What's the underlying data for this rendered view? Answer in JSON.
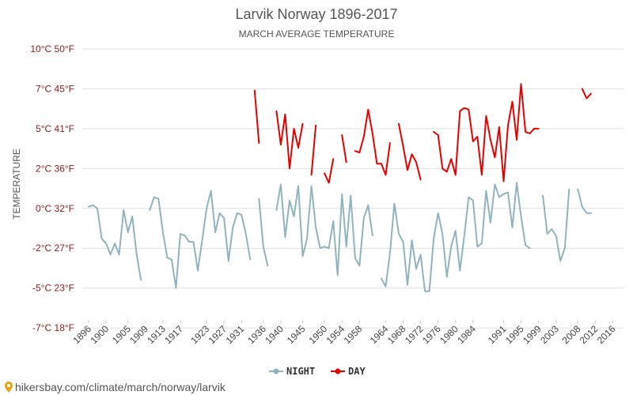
{
  "chart_data": {
    "type": "line",
    "title": "Larvik Norway 1896-2017",
    "subtitle": "MARCH AVERAGE TEMPERATURE",
    "ylabel": "TEMPERATURE",
    "xlabel": "",
    "ylim": [
      -7,
      10
    ],
    "y_ticks": [
      {
        "value": 10,
        "label": "10°C 50°F"
      },
      {
        "value": 7.5,
        "label": "7°C 45°F"
      },
      {
        "value": 5,
        "label": "5°C 41°F"
      },
      {
        "value": 2.5,
        "label": "2°C 36°F"
      },
      {
        "value": 0,
        "label": "0°C 32°F"
      },
      {
        "value": -2.5,
        "label": "-2°C 27°F"
      },
      {
        "value": -5,
        "label": "-5°C 23°F"
      },
      {
        "value": -7.5,
        "label": "-7°C 18°F"
      }
    ],
    "xlim": [
      1896,
      2017
    ],
    "x_ticks": [
      1896,
      1900,
      1905,
      1909,
      1913,
      1917,
      1923,
      1927,
      1931,
      1936,
      1940,
      1945,
      1950,
      1954,
      1958,
      1964,
      1968,
      1972,
      1976,
      1980,
      1984,
      1991,
      1995,
      1999,
      2003,
      2008,
      2012,
      2016
    ],
    "legend_position": "bottom-center",
    "grid": true,
    "series": [
      {
        "name": "NIGHT",
        "color": "#8fb3bf",
        "points": [
          [
            1896,
            0.1
          ],
          [
            1897,
            0.2
          ],
          [
            1898,
            0
          ],
          [
            1899,
            -1.9
          ],
          [
            1900,
            -2.2
          ],
          [
            1901,
            -2.9
          ],
          [
            1902,
            -2.2
          ],
          [
            1903,
            -2.9
          ],
          [
            1904,
            -0.1
          ],
          [
            1905,
            -1.5
          ],
          [
            1906,
            -0.5
          ],
          [
            1907,
            -2.9
          ],
          [
            1908,
            -4.5
          ],
          null,
          [
            1910,
            -0.1
          ],
          [
            1911,
            0.7
          ],
          [
            1912,
            0.6
          ],
          [
            1913,
            -1.5
          ],
          [
            1914,
            -3.1
          ],
          [
            1915,
            -3.2
          ],
          [
            1916,
            -5
          ],
          [
            1917,
            -1.6
          ],
          [
            1918,
            -1.7
          ],
          [
            1919,
            -2.1
          ],
          [
            1920,
            -2.1
          ],
          [
            1921,
            -3.9
          ],
          [
            1922,
            -2
          ],
          [
            1923,
            0
          ],
          [
            1924,
            1.1
          ],
          [
            1925,
            -1.5
          ],
          [
            1926,
            -0.3
          ],
          [
            1927,
            -0.6
          ],
          [
            1928,
            -3.3
          ],
          [
            1929,
            -1.2
          ],
          [
            1930,
            -0.3
          ],
          [
            1931,
            -0.4
          ],
          [
            1932,
            -1.6
          ],
          [
            1933,
            -3.2
          ],
          null,
          [
            1935,
            0.6
          ],
          [
            1936,
            -2.4
          ],
          [
            1937,
            -3.6
          ],
          null,
          [
            1939,
            -0.1
          ],
          [
            1940,
            1.5
          ],
          [
            1941,
            -1.8
          ],
          [
            1942,
            0.5
          ],
          [
            1943,
            -0.5
          ],
          [
            1944,
            1.4
          ],
          [
            1945,
            -3
          ],
          [
            1946,
            -1.9
          ],
          [
            1947,
            1.4
          ],
          [
            1948,
            -1.2
          ],
          [
            1949,
            -2.5
          ],
          [
            1950,
            -2.4
          ],
          [
            1951,
            -2.5
          ],
          [
            1952,
            -0.8
          ],
          [
            1953,
            -4.2
          ],
          [
            1954,
            0.9
          ],
          [
            1955,
            -2.4
          ],
          [
            1956,
            0.8
          ],
          [
            1957,
            -3.1
          ],
          [
            1958,
            -3.6
          ],
          [
            1959,
            -0.6
          ],
          [
            1960,
            0.2
          ],
          [
            1961,
            -1.7
          ],
          null,
          [
            1963,
            -4.4
          ],
          [
            1964,
            -4.9
          ],
          [
            1965,
            -2.8
          ],
          [
            1966,
            0.3
          ],
          [
            1967,
            -1.6
          ],
          [
            1968,
            -2.1
          ],
          [
            1969,
            -4.8
          ],
          [
            1970,
            -2
          ],
          [
            1971,
            -3.8
          ],
          [
            1972,
            -2.9
          ],
          [
            1973,
            -5.2
          ],
          [
            1974,
            -5.2
          ],
          [
            1975,
            -1.9
          ],
          [
            1976,
            -0.3
          ],
          [
            1977,
            -1.6
          ],
          [
            1978,
            -4.3
          ],
          [
            1979,
            -2.4
          ],
          [
            1980,
            -1.4
          ],
          [
            1981,
            -3.9
          ],
          [
            1982,
            -1.7
          ],
          [
            1983,
            0.7
          ],
          [
            1984,
            0.5
          ],
          [
            1985,
            -2.4
          ],
          [
            1986,
            -2.2
          ],
          [
            1987,
            1.1
          ],
          [
            1988,
            -0.9
          ],
          [
            1989,
            1.5
          ],
          [
            1990,
            0.7
          ],
          [
            1991,
            0.9
          ],
          [
            1992,
            1
          ],
          [
            1993,
            -1.2
          ],
          [
            1994,
            1.6
          ],
          [
            1995,
            -0.5
          ],
          [
            1996,
            -2.3
          ],
          [
            1997,
            -2.5
          ],
          null,
          [
            2000,
            0.8
          ],
          [
            2001,
            -1.6
          ],
          [
            2002,
            -1.3
          ],
          [
            2003,
            -1.7
          ],
          [
            2004,
            -3.3
          ],
          [
            2005,
            -2.5
          ],
          [
            2006,
            1.2
          ],
          null,
          [
            2008,
            1.2
          ],
          [
            2009,
            0.1
          ],
          [
            2010,
            -0.3
          ],
          [
            2011,
            -0.3
          ]
        ]
      },
      {
        "name": "DAY",
        "color": "#e60000",
        "points": [
          [
            1934,
            7.4
          ],
          [
            1935,
            4.1
          ],
          null,
          [
            1939,
            6.1
          ],
          [
            1940,
            4
          ],
          [
            1941,
            5.9
          ],
          [
            1942,
            2.5
          ],
          [
            1943,
            5
          ],
          [
            1944,
            3.8
          ],
          [
            1945,
            5.3
          ],
          null,
          [
            1947,
            2.1
          ],
          [
            1948,
            5.2
          ],
          null,
          [
            1950,
            2.2
          ],
          [
            1951,
            1.6
          ],
          [
            1952,
            3.1
          ],
          null,
          [
            1954,
            4.6
          ],
          [
            1955,
            2.9
          ],
          null,
          [
            1957,
            3.6
          ],
          [
            1958,
            3.5
          ],
          [
            1959,
            4.5
          ],
          [
            1960,
            6.2
          ],
          [
            1961,
            4.7
          ],
          [
            1962,
            2.8
          ],
          [
            1963,
            2.8
          ],
          [
            1964,
            2.1
          ],
          [
            1965,
            4.1
          ],
          null,
          [
            1967,
            5.3
          ],
          [
            1968,
            3.9
          ],
          [
            1969,
            2.4
          ],
          [
            1970,
            3.4
          ],
          [
            1971,
            2.9
          ],
          [
            1972,
            1.8
          ],
          null,
          [
            1975,
            4.8
          ],
          [
            1976,
            4.6
          ],
          [
            1977,
            2.5
          ],
          [
            1978,
            2.3
          ],
          [
            1979,
            3.1
          ],
          [
            1980,
            2.1
          ],
          [
            1981,
            6.1
          ],
          [
            1982,
            6.3
          ],
          [
            1983,
            6.2
          ],
          [
            1984,
            4.2
          ],
          [
            1985,
            4.5
          ],
          [
            1986,
            2.1
          ],
          [
            1987,
            5.8
          ],
          [
            1988,
            4.3
          ],
          [
            1989,
            3.2
          ],
          [
            1990,
            5.1
          ],
          [
            1991,
            1.7
          ],
          [
            1992,
            5.2
          ],
          [
            1993,
            6.7
          ],
          [
            1994,
            4.3
          ],
          [
            1995,
            7.8
          ],
          [
            1996,
            4.8
          ],
          [
            1997,
            4.7
          ],
          [
            1998,
            5
          ],
          [
            1999,
            5
          ],
          null,
          [
            2009,
            7.5
          ],
          [
            2010,
            6.9
          ],
          [
            2011,
            7.2
          ]
        ]
      }
    ]
  },
  "legend": {
    "night_label": "NIGHT",
    "day_label": "DAY"
  },
  "footer": {
    "url": "hikersbay.com/climate/march/norway/larvik"
  }
}
